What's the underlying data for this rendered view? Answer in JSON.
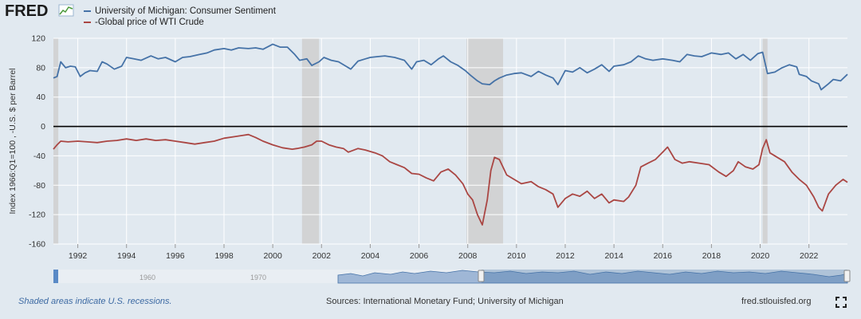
{
  "header": {
    "logo_text": "FRED"
  },
  "legend": [
    {
      "label": "University of Michigan: Consumer Sentiment",
      "color": "#4572a7"
    },
    {
      "label": "-Global price of WTI Crude",
      "color": "#aa4643"
    }
  ],
  "footer": {
    "recession_note": "Shaded areas indicate U.S. recessions.",
    "sources": "Sources: International Monetary Fund; University of Michigan",
    "site": "fred.stlouisfed.org"
  },
  "navigator": {
    "labels": [
      "1960",
      "1970"
    ]
  },
  "chart_data": {
    "type": "line",
    "title": "",
    "ylabel": "Index 1966:Q1=100 , -U.S. $ per Barrel",
    "xlabel": "",
    "xlim": [
      1991.0,
      2023.58
    ],
    "ylim": [
      -160,
      120
    ],
    "yticks": [
      -160,
      -120,
      -80,
      -40,
      0,
      40,
      80,
      120
    ],
    "xticks": [
      1992,
      1994,
      1996,
      1998,
      2000,
      2002,
      2004,
      2006,
      2008,
      2010,
      2012,
      2014,
      2016,
      2018,
      2020,
      2022
    ],
    "zero_line": 0,
    "recessions": [
      [
        1991.0,
        1991.2
      ],
      [
        2001.2,
        2001.9
      ],
      [
        2007.95,
        2009.45
      ],
      [
        2020.1,
        2020.3
      ]
    ],
    "series": [
      {
        "name": "University of Michigan: Consumer Sentiment",
        "color": "#4572a7",
        "points": [
          [
            1991.0,
            66
          ],
          [
            1991.15,
            68
          ],
          [
            1991.3,
            88
          ],
          [
            1991.5,
            80
          ],
          [
            1991.7,
            82
          ],
          [
            1991.9,
            81
          ],
          [
            1992.1,
            68
          ],
          [
            1992.3,
            73
          ],
          [
            1992.5,
            76
          ],
          [
            1992.8,
            75
          ],
          [
            1993.0,
            88
          ],
          [
            1993.2,
            85
          ],
          [
            1993.5,
            78
          ],
          [
            1993.8,
            82
          ],
          [
            1994.0,
            94
          ],
          [
            1994.3,
            92
          ],
          [
            1994.6,
            90
          ],
          [
            1995.0,
            96
          ],
          [
            1995.3,
            92
          ],
          [
            1995.6,
            94
          ],
          [
            1996.0,
            88
          ],
          [
            1996.3,
            94
          ],
          [
            1996.6,
            95
          ],
          [
            1997.0,
            98
          ],
          [
            1997.3,
            100
          ],
          [
            1997.6,
            104
          ],
          [
            1998.0,
            106
          ],
          [
            1998.3,
            104
          ],
          [
            1998.6,
            107
          ],
          [
            1999.0,
            106
          ],
          [
            1999.3,
            107
          ],
          [
            1999.6,
            105
          ],
          [
            2000.0,
            112
          ],
          [
            2000.3,
            108
          ],
          [
            2000.6,
            108
          ],
          [
            2000.9,
            98
          ],
          [
            2001.1,
            90
          ],
          [
            2001.4,
            92
          ],
          [
            2001.6,
            83
          ],
          [
            2001.9,
            88
          ],
          [
            2002.1,
            94
          ],
          [
            2002.4,
            90
          ],
          [
            2002.7,
            88
          ],
          [
            2003.0,
            82
          ],
          [
            2003.2,
            78
          ],
          [
            2003.5,
            89
          ],
          [
            2003.8,
            92
          ],
          [
            2004.0,
            94
          ],
          [
            2004.3,
            95
          ],
          [
            2004.6,
            96
          ],
          [
            2005.0,
            94
          ],
          [
            2005.4,
            90
          ],
          [
            2005.7,
            78
          ],
          [
            2005.9,
            88
          ],
          [
            2006.2,
            90
          ],
          [
            2006.5,
            84
          ],
          [
            2006.8,
            92
          ],
          [
            2007.0,
            96
          ],
          [
            2007.3,
            88
          ],
          [
            2007.6,
            83
          ],
          [
            2007.9,
            76
          ],
          [
            2008.1,
            70
          ],
          [
            2008.4,
            62
          ],
          [
            2008.6,
            58
          ],
          [
            2008.9,
            57
          ],
          [
            2009.1,
            62
          ],
          [
            2009.3,
            66
          ],
          [
            2009.6,
            70
          ],
          [
            2009.9,
            72
          ],
          [
            2010.2,
            73
          ],
          [
            2010.6,
            68
          ],
          [
            2010.9,
            75
          ],
          [
            2011.2,
            70
          ],
          [
            2011.5,
            66
          ],
          [
            2011.7,
            57
          ],
          [
            2012.0,
            76
          ],
          [
            2012.3,
            74
          ],
          [
            2012.6,
            80
          ],
          [
            2012.9,
            73
          ],
          [
            2013.2,
            78
          ],
          [
            2013.5,
            84
          ],
          [
            2013.8,
            75
          ],
          [
            2014.0,
            82
          ],
          [
            2014.4,
            84
          ],
          [
            2014.7,
            88
          ],
          [
            2015.0,
            96
          ],
          [
            2015.3,
            92
          ],
          [
            2015.6,
            90
          ],
          [
            2016.0,
            92
          ],
          [
            2016.4,
            90
          ],
          [
            2016.7,
            88
          ],
          [
            2017.0,
            98
          ],
          [
            2017.3,
            96
          ],
          [
            2017.6,
            95
          ],
          [
            2018.0,
            100
          ],
          [
            2018.4,
            98
          ],
          [
            2018.7,
            100
          ],
          [
            2019.0,
            92
          ],
          [
            2019.3,
            98
          ],
          [
            2019.6,
            90
          ],
          [
            2019.9,
            99
          ],
          [
            2020.1,
            101
          ],
          [
            2020.3,
            72
          ],
          [
            2020.6,
            74
          ],
          [
            2020.9,
            80
          ],
          [
            2021.2,
            84
          ],
          [
            2021.5,
            81
          ],
          [
            2021.6,
            71
          ],
          [
            2021.9,
            68
          ],
          [
            2022.1,
            62
          ],
          [
            2022.4,
            58
          ],
          [
            2022.5,
            50
          ],
          [
            2022.8,
            58
          ],
          [
            2023.0,
            64
          ],
          [
            2023.3,
            62
          ],
          [
            2023.58,
            71
          ]
        ]
      },
      {
        "name": "-Global price of WTI Crude",
        "color": "#aa4643",
        "points": [
          [
            1991.0,
            -31
          ],
          [
            1991.15,
            -25
          ],
          [
            1991.3,
            -20
          ],
          [
            1991.6,
            -21
          ],
          [
            1992.0,
            -20
          ],
          [
            1992.4,
            -21
          ],
          [
            1992.8,
            -22
          ],
          [
            1993.2,
            -20
          ],
          [
            1993.6,
            -19
          ],
          [
            1994.0,
            -17
          ],
          [
            1994.4,
            -19
          ],
          [
            1994.8,
            -17
          ],
          [
            1995.2,
            -19
          ],
          [
            1995.6,
            -18
          ],
          [
            1996.0,
            -20
          ],
          [
            1996.4,
            -22
          ],
          [
            1996.8,
            -24
          ],
          [
            1997.2,
            -22
          ],
          [
            1997.6,
            -20
          ],
          [
            1998.0,
            -16
          ],
          [
            1998.4,
            -14
          ],
          [
            1998.8,
            -12
          ],
          [
            1999.0,
            -11
          ],
          [
            1999.3,
            -15
          ],
          [
            1999.6,
            -20
          ],
          [
            2000.0,
            -25
          ],
          [
            2000.4,
            -29
          ],
          [
            2000.8,
            -31
          ],
          [
            2001.0,
            -30
          ],
          [
            2001.3,
            -28
          ],
          [
            2001.6,
            -25
          ],
          [
            2001.8,
            -20
          ],
          [
            2002.0,
            -20
          ],
          [
            2002.3,
            -25
          ],
          [
            2002.6,
            -28
          ],
          [
            2002.9,
            -30
          ],
          [
            2003.1,
            -35
          ],
          [
            2003.5,
            -30
          ],
          [
            2003.8,
            -32
          ],
          [
            2004.2,
            -36
          ],
          [
            2004.5,
            -40
          ],
          [
            2004.8,
            -48
          ],
          [
            2005.1,
            -52
          ],
          [
            2005.4,
            -56
          ],
          [
            2005.7,
            -64
          ],
          [
            2006.0,
            -65
          ],
          [
            2006.3,
            -70
          ],
          [
            2006.6,
            -74
          ],
          [
            2006.9,
            -62
          ],
          [
            2007.2,
            -58
          ],
          [
            2007.5,
            -66
          ],
          [
            2007.8,
            -78
          ],
          [
            2008.0,
            -92
          ],
          [
            2008.2,
            -100
          ],
          [
            2008.4,
            -120
          ],
          [
            2008.6,
            -134
          ],
          [
            2008.8,
            -100
          ],
          [
            2008.95,
            -60
          ],
          [
            2009.1,
            -42
          ],
          [
            2009.3,
            -45
          ],
          [
            2009.6,
            -66
          ],
          [
            2009.9,
            -72
          ],
          [
            2010.2,
            -78
          ],
          [
            2010.6,
            -75
          ],
          [
            2010.9,
            -82
          ],
          [
            2011.2,
            -86
          ],
          [
            2011.5,
            -92
          ],
          [
            2011.7,
            -110
          ],
          [
            2012.0,
            -98
          ],
          [
            2012.3,
            -92
          ],
          [
            2012.6,
            -95
          ],
          [
            2012.9,
            -88
          ],
          [
            2013.2,
            -98
          ],
          [
            2013.5,
            -92
          ],
          [
            2013.8,
            -104
          ],
          [
            2014.0,
            -100
          ],
          [
            2014.4,
            -102
          ],
          [
            2014.6,
            -96
          ],
          [
            2014.9,
            -80
          ],
          [
            2015.1,
            -55
          ],
          [
            2015.4,
            -50
          ],
          [
            2015.7,
            -45
          ],
          [
            2016.0,
            -35
          ],
          [
            2016.2,
            -28
          ],
          [
            2016.5,
            -45
          ],
          [
            2016.8,
            -50
          ],
          [
            2017.1,
            -48
          ],
          [
            2017.5,
            -50
          ],
          [
            2017.9,
            -52
          ],
          [
            2018.3,
            -62
          ],
          [
            2018.6,
            -68
          ],
          [
            2018.9,
            -60
          ],
          [
            2019.1,
            -48
          ],
          [
            2019.4,
            -55
          ],
          [
            2019.7,
            -58
          ],
          [
            2019.95,
            -52
          ],
          [
            2020.1,
            -30
          ],
          [
            2020.25,
            -18
          ],
          [
            2020.4,
            -36
          ],
          [
            2020.7,
            -42
          ],
          [
            2021.0,
            -48
          ],
          [
            2021.3,
            -62
          ],
          [
            2021.6,
            -72
          ],
          [
            2021.9,
            -80
          ],
          [
            2022.2,
            -96
          ],
          [
            2022.4,
            -110
          ],
          [
            2022.55,
            -115
          ],
          [
            2022.8,
            -92
          ],
          [
            2023.1,
            -80
          ],
          [
            2023.4,
            -72
          ],
          [
            2023.58,
            -76
          ]
        ]
      }
    ]
  }
}
